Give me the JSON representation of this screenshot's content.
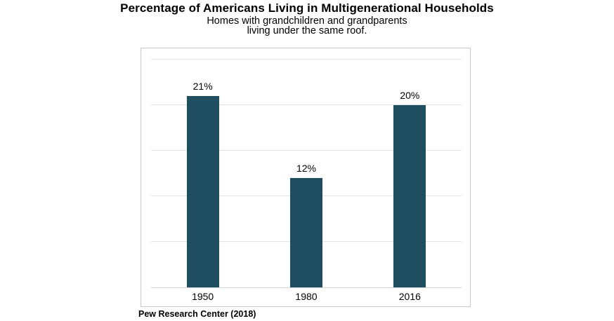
{
  "header": {
    "title": "Percentage of Americans Living in Multigenerational Households",
    "subtitle_line1": "Homes with grandchildren and grandparents",
    "subtitle_line2": "living under the same roof."
  },
  "footer": {
    "source": "Pew Research Center (2018)"
  },
  "colors": {
    "bar": "#1e4e5f",
    "gridline": "#e3e3e3",
    "axis_line": "#d2d2d2",
    "plot_border": "#c9c9c9",
    "background": "#ffffff",
    "text": "#000000"
  },
  "chart_data": {
    "type": "bar",
    "title": "Percentage of Americans Living in Multigenerational Households",
    "subtitle": "Homes with grandchildren and grandparents living under the same roof.",
    "categories": [
      "1950",
      "1980",
      "2016"
    ],
    "values": [
      21,
      12,
      20
    ],
    "value_labels": [
      "21%",
      "12%",
      "20%"
    ],
    "xlabel": "",
    "ylabel": "",
    "ylim": [
      0,
      25
    ],
    "gridline_interval": 5,
    "grid": true,
    "legend": false,
    "y_tick_labels_visible": false,
    "bar_color": "#1e4e5f",
    "source": "Pew Research Center (2018)"
  }
}
